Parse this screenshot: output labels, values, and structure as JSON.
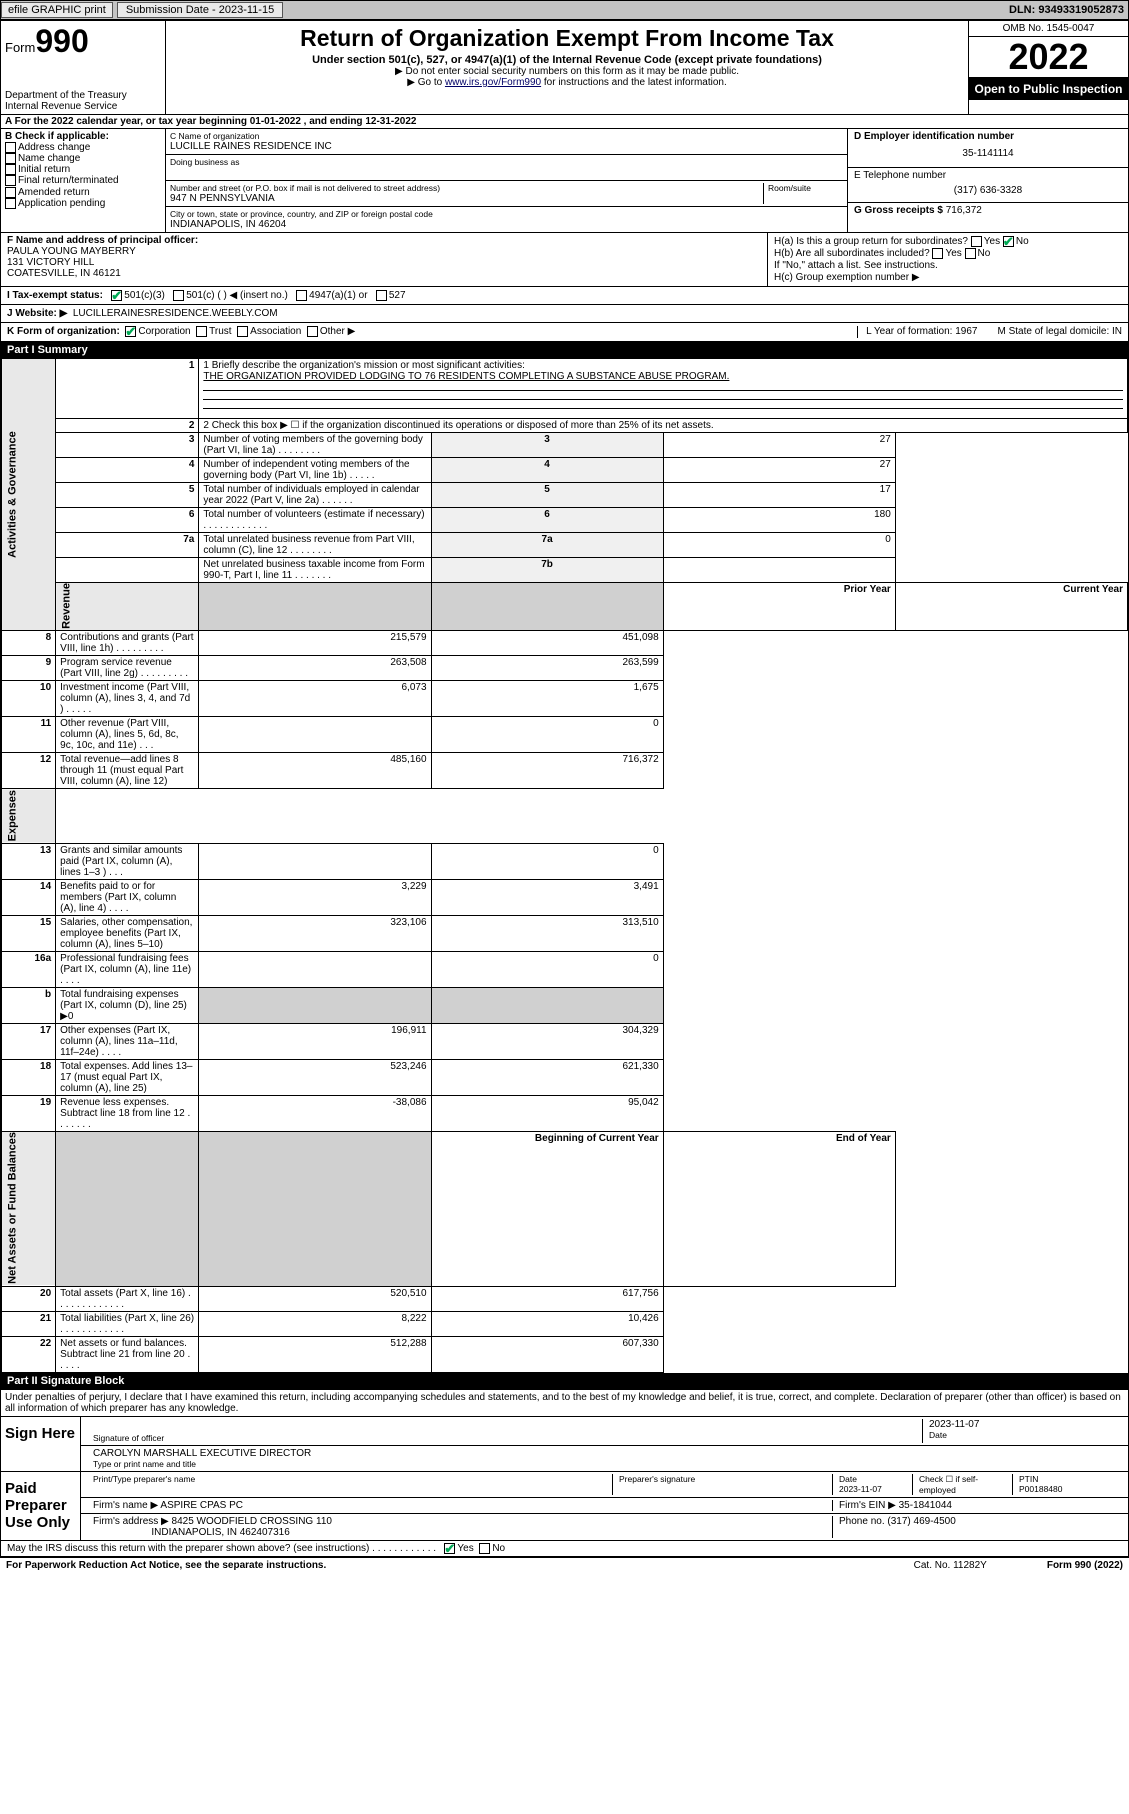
{
  "topbar": {
    "efile": "efile GRAPHIC print",
    "submission_label": "Submission Date - 2023-11-15",
    "dln": "DLN: 93493319052873"
  },
  "header": {
    "form_prefix": "Form",
    "form_num": "990",
    "dept": "Department of the Treasury",
    "irs": "Internal Revenue Service",
    "title": "Return of Organization Exempt From Income Tax",
    "sub1": "Under section 501(c), 527, or 4947(a)(1) of the Internal Revenue Code (except private foundations)",
    "sub2a": "▶ Do not enter social security numbers on this form as it may be made public.",
    "sub2b_pre": "▶ Go to ",
    "sub2b_link": "www.irs.gov/Form990",
    "sub2b_post": " for instructions and the latest information.",
    "omb": "OMB No. 1545-0047",
    "year": "2022",
    "inspection": "Open to Public Inspection"
  },
  "row_a": "A  For the 2022 calendar year, or tax year beginning 01-01-2022   , and ending 12-31-2022",
  "col_b": {
    "hdr": "B Check if applicable:",
    "items": [
      "Address change",
      "Name change",
      "Initial return",
      "Final return/terminated",
      "Amended return",
      "Application pending"
    ]
  },
  "col_c": {
    "name_lbl": "C Name of organization",
    "name": "LUCILLE RAINES RESIDENCE INC",
    "dba_lbl": "Doing business as",
    "addr_lbl": "Number and street (or P.O. box if mail is not delivered to street address)",
    "room_lbl": "Room/suite",
    "addr": "947 N PENNSYLVANIA",
    "city_lbl": "City or town, state or province, country, and ZIP or foreign postal code",
    "city": "INDIANAPOLIS, IN  46204"
  },
  "col_d": {
    "ein_lbl": "D Employer identification number",
    "ein": "35-1141114",
    "phone_lbl": "E Telephone number",
    "phone": "(317) 636-3328",
    "gross_lbl": "G Gross receipts $ ",
    "gross": "716,372"
  },
  "row_f": {
    "lbl": "F  Name and address of principal officer:",
    "name": "PAULA YOUNG MAYBERRY",
    "addr1": "131 VICTORY HILL",
    "addr2": "COATESVILLE, IN  46121"
  },
  "row_h": {
    "a": "H(a)  Is this a group return for subordinates?",
    "a_ans": "No",
    "b": "H(b)  Are all subordinates included?",
    "b_note": "If \"No,\" attach a list. See instructions.",
    "c": "H(c)  Group exemption number ▶"
  },
  "row_i": {
    "lbl": "I   Tax-exempt status:",
    "opts": [
      "501(c)(3)",
      "501(c) (  ) ◀ (insert no.)",
      "4947(a)(1) or",
      "527"
    ]
  },
  "row_j": {
    "lbl": "J   Website: ▶",
    "val": "LUCILLERAINESRESIDENCE.WEEBLY.COM"
  },
  "row_k": {
    "lbl": "K Form of organization:",
    "opts": [
      "Corporation",
      "Trust",
      "Association",
      "Other ▶"
    ],
    "l": "L Year of formation: 1967",
    "m": "M State of legal domicile: IN"
  },
  "parts": {
    "p1": "Part I      Summary",
    "p2": "Part II     Signature Block"
  },
  "mission_lbl": "1   Briefly describe the organization's mission or most significant activities:",
  "mission": "THE ORGANIZATION PROVIDED LODGING TO 76 RESIDENTS COMPLETING A SUBSTANCE ABUSE PROGRAM.",
  "line2": "2   Check this box ▶ ☐  if the organization discontinued its operations or disposed of more than 25% of its net assets.",
  "gov_rows": [
    {
      "n": "3",
      "d": "Number of voting members of the governing body (Part VI, line 1a)   .   .   .   .   .   .   .   .",
      "b": "3",
      "v": "27"
    },
    {
      "n": "4",
      "d": "Number of independent voting members of the governing body (Part VI, line 1b)   .   .   .   .   .",
      "b": "4",
      "v": "27"
    },
    {
      "n": "5",
      "d": "Total number of individuals employed in calendar year 2022 (Part V, line 2a)   .   .   .   .   .   .",
      "b": "5",
      "v": "17"
    },
    {
      "n": "6",
      "d": "Total number of volunteers (estimate if necessary)   .   .   .   .   .   .   .   .   .   .   .   .",
      "b": "6",
      "v": "180"
    },
    {
      "n": "7a",
      "d": "Total unrelated business revenue from Part VIII, column (C), line 12   .   .   .   .   .   .   .   .",
      "b": "7a",
      "v": "0"
    },
    {
      "n": "",
      "d": "Net unrelated business taxable income from Form 990-T, Part I, line 11   .   .   .   .   .   .   .",
      "b": "7b",
      "v": ""
    }
  ],
  "rev_hdr": {
    "py": "Prior Year",
    "cy": "Current Year"
  },
  "rev_rows": [
    {
      "n": "8",
      "d": "Contributions and grants (Part VIII, line 1h)   .   .   .   .   .   .   .   .   .",
      "py": "215,579",
      "cy": "451,098"
    },
    {
      "n": "9",
      "d": "Program service revenue (Part VIII, line 2g)   .   .   .   .   .   .   .   .   .",
      "py": "263,508",
      "cy": "263,599"
    },
    {
      "n": "10",
      "d": "Investment income (Part VIII, column (A), lines 3, 4, and 7d )   .   .   .   .   .",
      "py": "6,073",
      "cy": "1,675"
    },
    {
      "n": "11",
      "d": "Other revenue (Part VIII, column (A), lines 5, 6d, 8c, 9c, 10c, and 11e)   .   .   .",
      "py": "",
      "cy": "0"
    },
    {
      "n": "12",
      "d": "Total revenue—add lines 8 through 11 (must equal Part VIII, column (A), line 12)",
      "py": "485,160",
      "cy": "716,372"
    }
  ],
  "exp_rows": [
    {
      "n": "13",
      "d": "Grants and similar amounts paid (Part IX, column (A), lines 1–3 )   .   .   .",
      "py": "",
      "cy": "0"
    },
    {
      "n": "14",
      "d": "Benefits paid to or for members (Part IX, column (A), line 4)   .   .   .   .",
      "py": "3,229",
      "cy": "3,491"
    },
    {
      "n": "15",
      "d": "Salaries, other compensation, employee benefits (Part IX, column (A), lines 5–10)",
      "py": "323,106",
      "cy": "313,510"
    },
    {
      "n": "16a",
      "d": "Professional fundraising fees (Part IX, column (A), line 11e)   .   .   .   .",
      "py": "",
      "cy": "0"
    },
    {
      "n": "b",
      "d": "Total fundraising expenses (Part IX, column (D), line 25) ▶0",
      "py": "grey",
      "cy": "grey"
    },
    {
      "n": "17",
      "d": "Other expenses (Part IX, column (A), lines 11a–11d, 11f–24e)   .   .   .   .",
      "py": "196,911",
      "cy": "304,329"
    },
    {
      "n": "18",
      "d": "Total expenses. Add lines 13–17 (must equal Part IX, column (A), line 25)",
      "py": "523,246",
      "cy": "621,330"
    },
    {
      "n": "19",
      "d": "Revenue less expenses. Subtract line 18 from line 12   .   .   .   .   .   .   .",
      "py": "-38,086",
      "cy": "95,042"
    }
  ],
  "na_hdr": {
    "py": "Beginning of Current Year",
    "cy": "End of Year"
  },
  "na_rows": [
    {
      "n": "20",
      "d": "Total assets (Part X, line 16)   .   .   .   .   .   .   .   .   .   .   .   .   .",
      "py": "520,510",
      "cy": "617,756"
    },
    {
      "n": "21",
      "d": "Total liabilities (Part X, line 26)   .   .   .   .   .   .   .   .   .   .   .   .",
      "py": "8,222",
      "cy": "10,426"
    },
    {
      "n": "22",
      "d": "Net assets or fund balances. Subtract line 21 from line 20   .   .   .   .   .",
      "py": "512,288",
      "cy": "607,330"
    }
  ],
  "side_labels": {
    "gov": "Activities & Governance",
    "rev": "Revenue",
    "exp": "Expenses",
    "na": "Net Assets or Fund Balances"
  },
  "sig": {
    "decl": "Under penalties of perjury, I declare that I have examined this return, including accompanying schedules and statements, and to the best of my knowledge and belief, it is true, correct, and complete. Declaration of preparer (other than officer) is based on all information of which preparer has any knowledge.",
    "sign_here": "Sign Here",
    "sig_officer": "Signature of officer",
    "date_lbl": "Date",
    "sig_date": "2023-11-07",
    "name_title": "CAROLYN MARSHALL  EXECUTIVE DIRECTOR",
    "name_title_lbl": "Type or print name and title",
    "paid": "Paid Preparer Use Only",
    "prep_name_lbl": "Print/Type preparer's name",
    "prep_sig_lbl": "Preparer's signature",
    "prep_date": "2023-11-07",
    "check_lbl": "Check ☐ if self-employed",
    "ptin_lbl": "PTIN",
    "ptin": "P00188480",
    "firm_name_lbl": "Firm's name   ▶",
    "firm_name": "ASPIRE CPAS PC",
    "firm_ein_lbl": "Firm's EIN ▶",
    "firm_ein": "35-1841044",
    "firm_addr_lbl": "Firm's address ▶",
    "firm_addr1": "8425 WOODFIELD CROSSING 110",
    "firm_addr2": "INDIANAPOLIS, IN  462407316",
    "firm_phone_lbl": "Phone no.",
    "firm_phone": "(317) 469-4500",
    "discuss": "May the IRS discuss this return with the preparer shown above? (see instructions)   .   .   .   .   .   .   .   .   .   .   .   .",
    "discuss_ans": "Yes"
  },
  "footer": {
    "pra": "For Paperwork Reduction Act Notice, see the separate instructions.",
    "cat": "Cat. No. 11282Y",
    "form": "Form 990 (2022)"
  }
}
